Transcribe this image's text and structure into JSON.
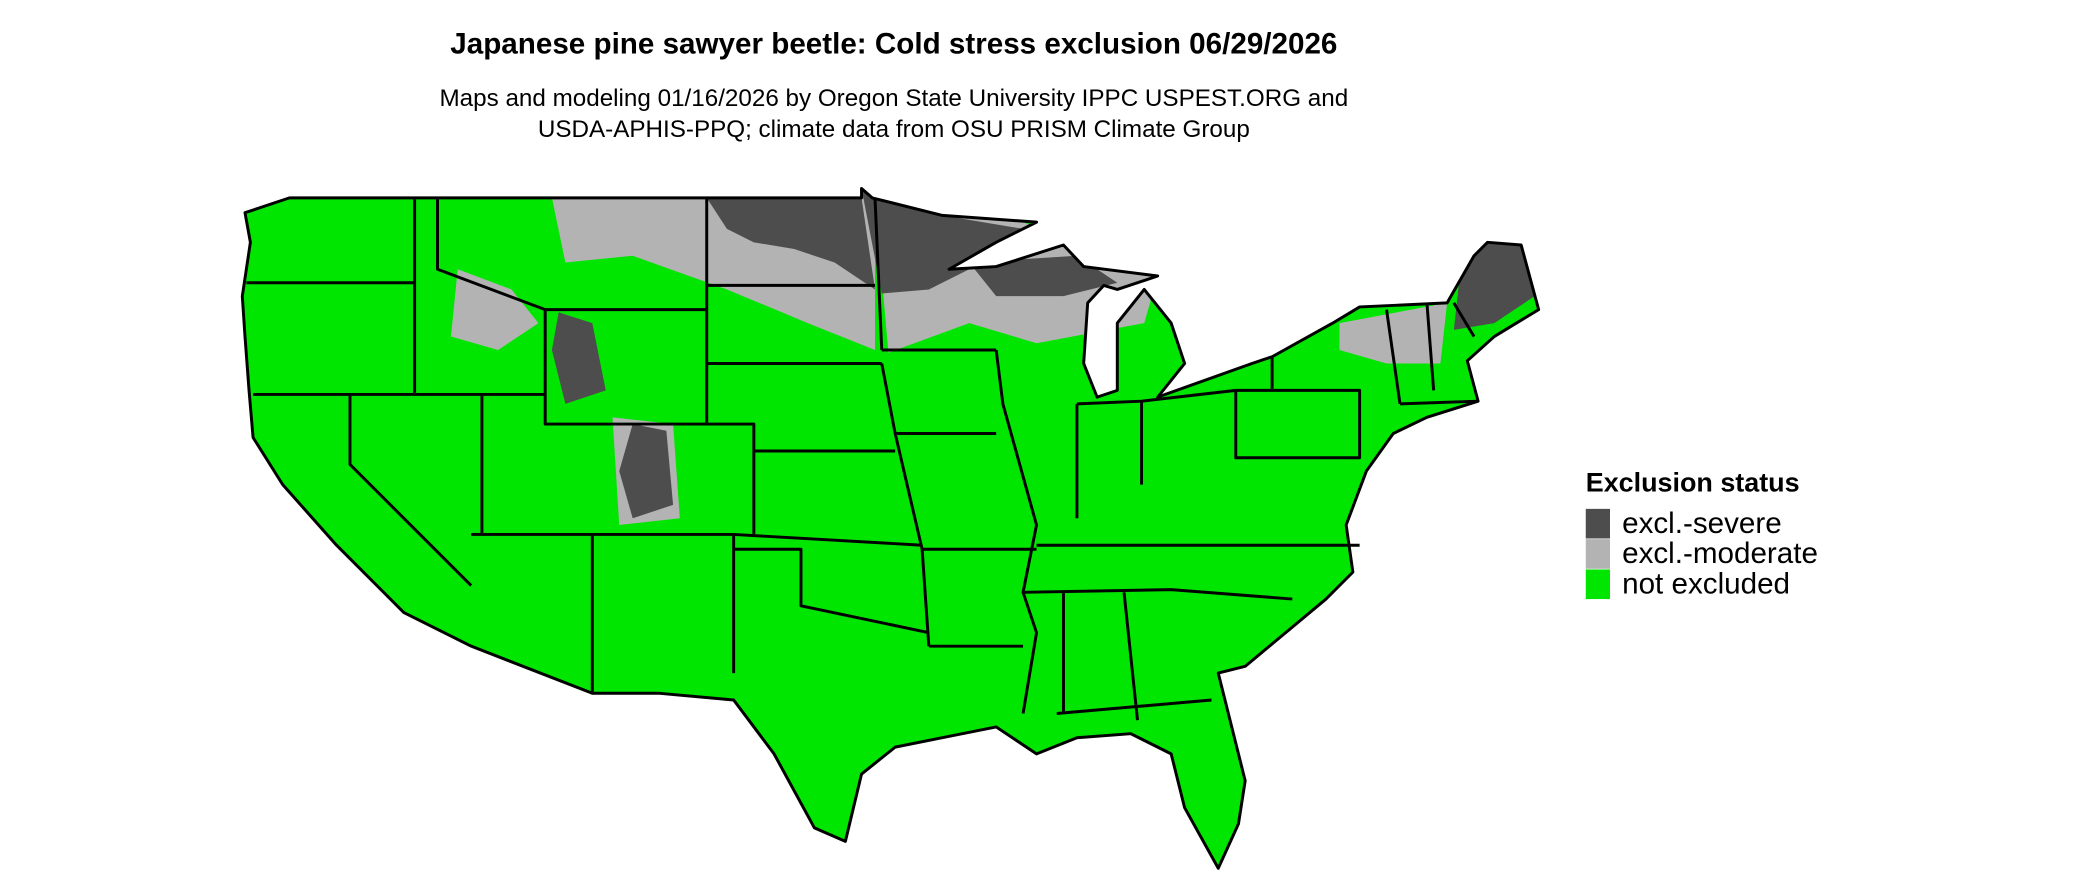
{
  "title": "Japanese pine sawyer beetle: Cold stress exclusion 06/29/2026",
  "subtitle": [
    "Maps and modeling 01/16/2026 by Oregon State University IPPC USPEST.ORG and",
    "USDA-APHIS-PPQ; climate data from OSU PRISM Climate Group"
  ],
  "legend": {
    "title": "Exclusion status",
    "items": [
      {
        "label": "excl.-severe",
        "color": "#4d4d4d"
      },
      {
        "label": "excl.-moderate",
        "color": "#b3b3b3"
      },
      {
        "label": "not excluded",
        "color": "#00e600"
      }
    ]
  }
}
